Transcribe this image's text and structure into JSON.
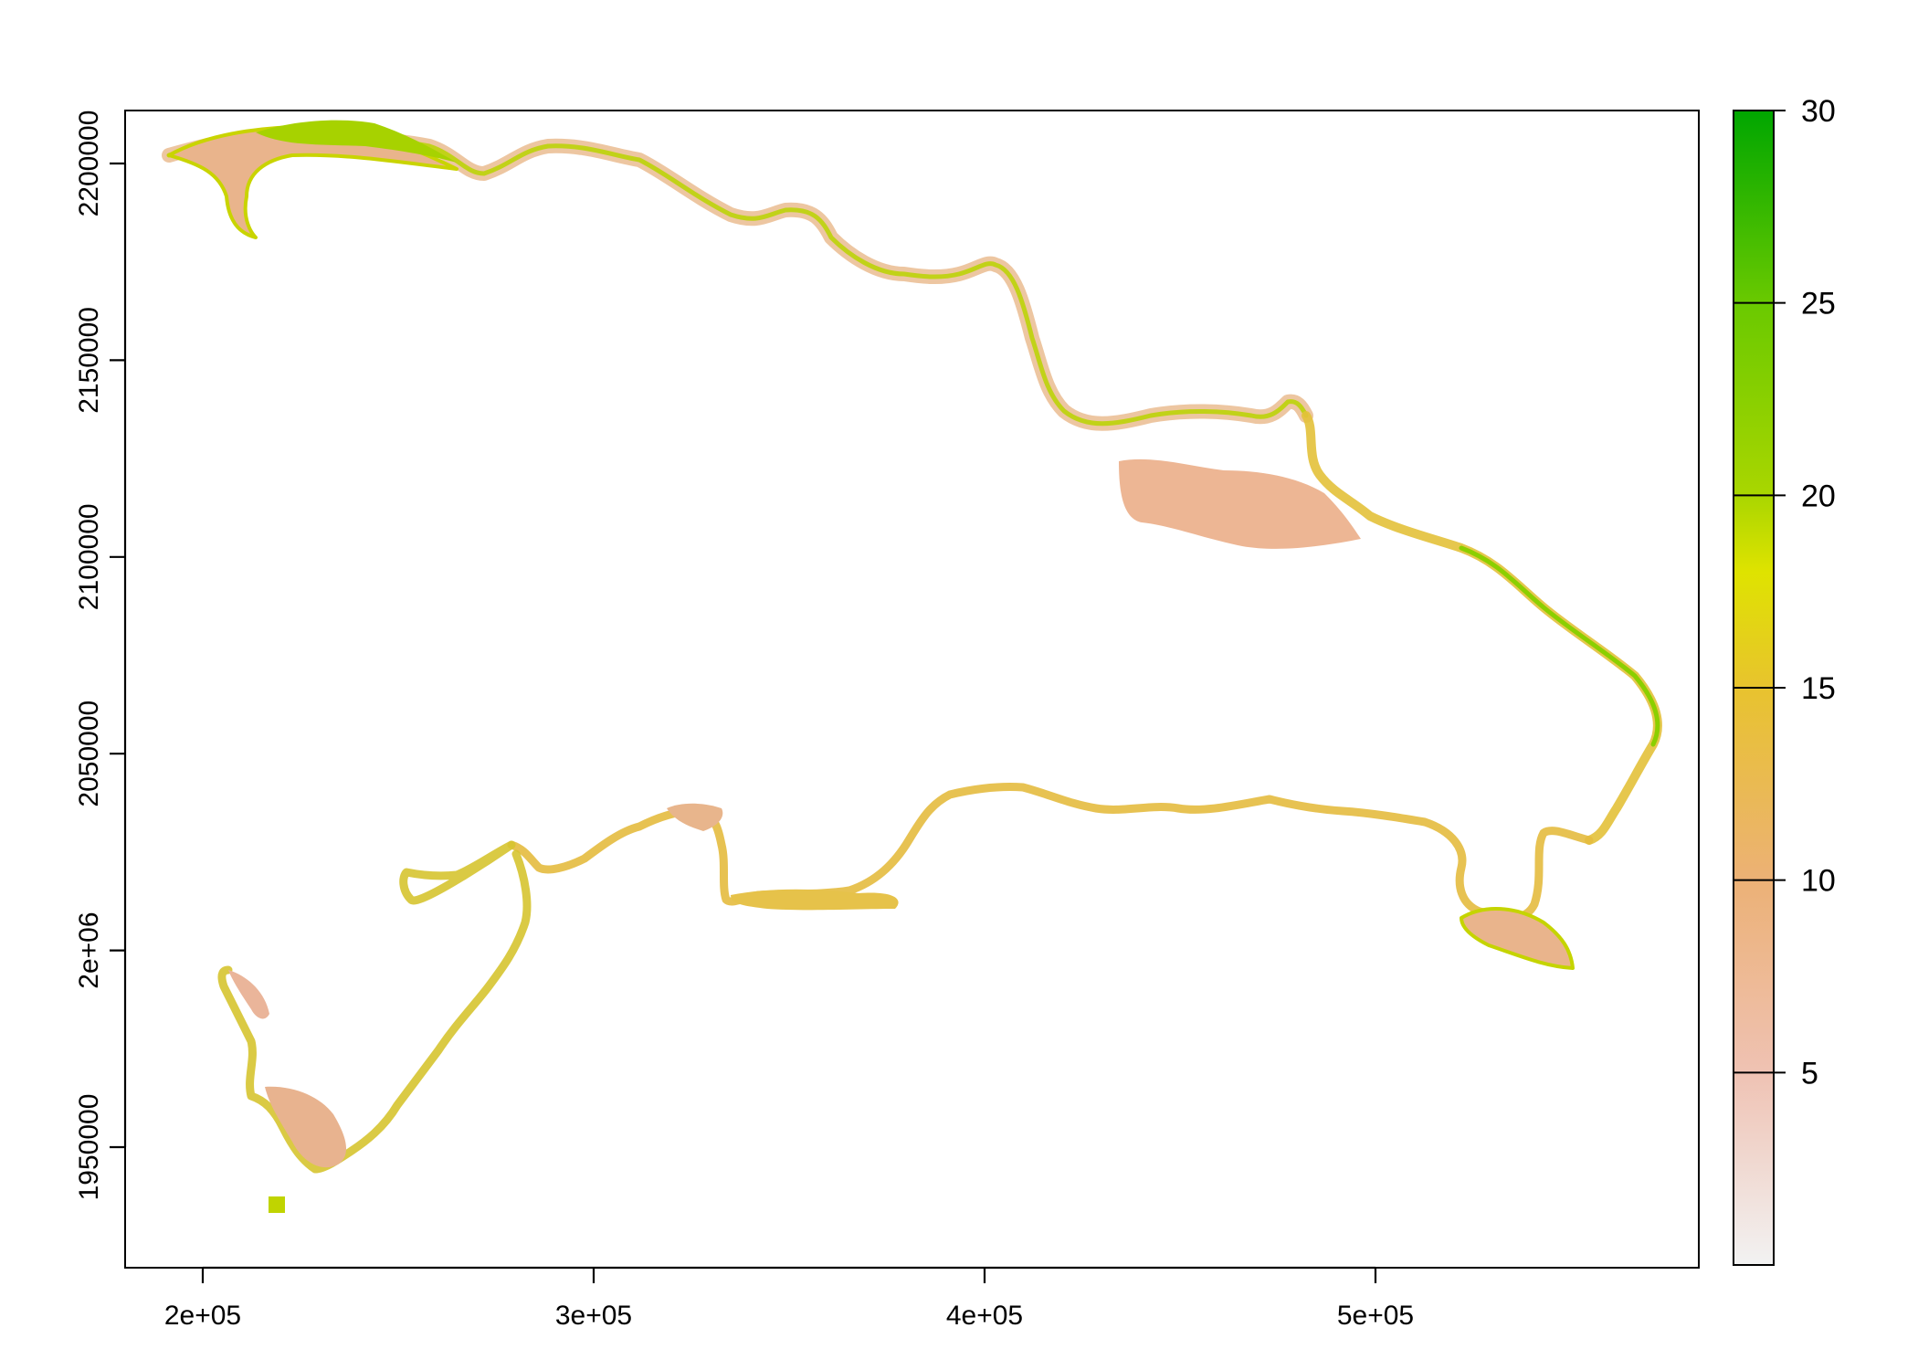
{
  "map": {
    "type": "raster",
    "x_axis": {
      "ticks": [
        {
          "value": 200000,
          "label": "2e+05"
        },
        {
          "value": 300000,
          "label": "3e+05"
        },
        {
          "value": 400000,
          "label": "4e+05"
        },
        {
          "value": 500000,
          "label": "5e+05"
        }
      ],
      "range": [
        180000,
        580000
      ]
    },
    "y_axis": {
      "ticks": [
        {
          "value": 1950000,
          "label": "1950000"
        },
        {
          "value": 2000000,
          "label": "2e+06"
        },
        {
          "value": 2050000,
          "label": "2050000"
        },
        {
          "value": 2100000,
          "label": "2100000"
        },
        {
          "value": 2150000,
          "label": "2150000"
        },
        {
          "value": 2200000,
          "label": "2200000"
        }
      ],
      "range": [
        1920000,
        2215000
      ]
    },
    "legend": {
      "ticks": [
        {
          "value": 5,
          "label": "5"
        },
        {
          "value": 10,
          "label": "10"
        },
        {
          "value": 15,
          "label": "15"
        },
        {
          "value": 20,
          "label": "20"
        },
        {
          "value": 25,
          "label": "25"
        },
        {
          "value": 30,
          "label": "30"
        }
      ],
      "range": [
        0,
        30
      ],
      "colors": [
        "#f2f2f2",
        "#efc2b3",
        "#ecb176",
        "#e8c32e",
        "#dfe300",
        "#a9d600",
        "#6ac900",
        "#00a600"
      ]
    }
  }
}
